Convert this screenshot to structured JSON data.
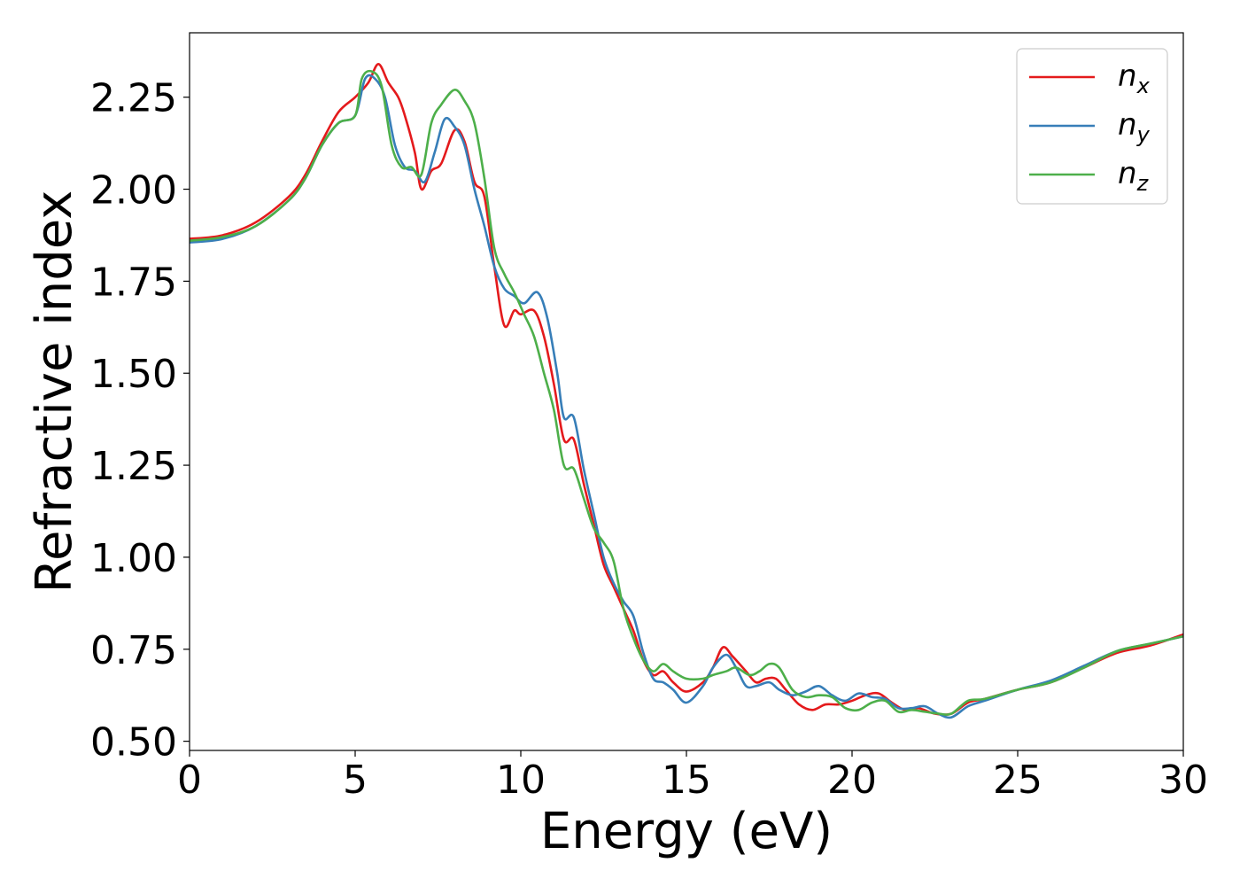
{
  "chart_data": {
    "type": "line",
    "title": "",
    "xlabel": "Energy (eV)",
    "ylabel": "Refractive index",
    "xlim": [
      0,
      30
    ],
    "ylim": [
      0.475,
      2.425
    ],
    "xticks": [
      0,
      5,
      10,
      15,
      20,
      25,
      30
    ],
    "xtick_labels": [
      "0",
      "5",
      "10",
      "15",
      "20",
      "25",
      "30"
    ],
    "yticks": [
      0.5,
      0.75,
      1.0,
      1.25,
      1.5,
      1.75,
      2.0,
      2.25
    ],
    "ytick_labels": [
      "0.50",
      "0.75",
      "1.00",
      "1.25",
      "1.50",
      "1.75",
      "2.00",
      "2.25"
    ],
    "grid": false,
    "legend_position": "top-right",
    "series": [
      {
        "name": "n",
        "subscript": "x",
        "color": "#e41a1c",
        "x": [
          0,
          1,
          2,
          3,
          3.5,
          4,
          4.5,
          5,
          5.4,
          5.7,
          6.0,
          6.3,
          6.5,
          6.8,
          7.0,
          7.3,
          7.6,
          8.0,
          8.3,
          8.6,
          8.9,
          9.2,
          9.5,
          9.8,
          10.0,
          10.4,
          10.7,
          11.0,
          11.3,
          11.6,
          11.9,
          12.2,
          12.5,
          12.8,
          13.1,
          13.4,
          13.7,
          14.0,
          14.3,
          14.6,
          15.0,
          15.5,
          15.8,
          16.1,
          16.4,
          16.8,
          17.1,
          17.4,
          17.7,
          18.0,
          18.4,
          18.8,
          19.2,
          19.6,
          20.0,
          20.4,
          20.8,
          21.2,
          21.6,
          22.0,
          22.5,
          23.0,
          23.5,
          24.0,
          25.0,
          26.0,
          27.0,
          28.0,
          29.0,
          30.0
        ],
        "y": [
          1.865,
          1.875,
          1.91,
          1.98,
          2.04,
          2.13,
          2.21,
          2.25,
          2.29,
          2.34,
          2.29,
          2.25,
          2.2,
          2.1,
          2.0,
          2.05,
          2.07,
          2.16,
          2.13,
          2.02,
          1.98,
          1.79,
          1.63,
          1.67,
          1.66,
          1.67,
          1.6,
          1.47,
          1.32,
          1.32,
          1.2,
          1.09,
          0.98,
          0.92,
          0.86,
          0.8,
          0.72,
          0.68,
          0.69,
          0.66,
          0.635,
          0.66,
          0.7,
          0.755,
          0.73,
          0.69,
          0.66,
          0.67,
          0.67,
          0.64,
          0.6,
          0.585,
          0.6,
          0.6,
          0.61,
          0.625,
          0.63,
          0.605,
          0.585,
          0.59,
          0.575,
          0.575,
          0.605,
          0.615,
          0.64,
          0.66,
          0.7,
          0.74,
          0.76,
          0.79
        ]
      },
      {
        "name": "n",
        "subscript": "y",
        "color": "#377eb8",
        "x": [
          0,
          1,
          2,
          3,
          3.5,
          4,
          4.5,
          5,
          5.3,
          5.6,
          5.9,
          6.2,
          6.5,
          6.8,
          7.1,
          7.4,
          7.7,
          8.0,
          8.3,
          8.6,
          8.9,
          9.2,
          9.5,
          9.8,
          10.1,
          10.5,
          10.8,
          11.1,
          11.3,
          11.6,
          11.9,
          12.2,
          12.5,
          12.8,
          13.1,
          13.4,
          13.7,
          14.0,
          14.3,
          14.6,
          15.0,
          15.5,
          15.8,
          16.2,
          16.5,
          16.8,
          17.1,
          17.5,
          17.8,
          18.2,
          18.6,
          19.0,
          19.4,
          19.8,
          20.2,
          20.6,
          21.0,
          21.4,
          21.8,
          22.2,
          22.6,
          23.0,
          23.5,
          24.0,
          25.0,
          26.0,
          27.0,
          28.0,
          29.0,
          30.0
        ],
        "y": [
          1.855,
          1.865,
          1.9,
          1.97,
          2.03,
          2.12,
          2.18,
          2.2,
          2.3,
          2.3,
          2.25,
          2.12,
          2.06,
          2.05,
          2.02,
          2.1,
          2.19,
          2.17,
          2.12,
          2.0,
          1.9,
          1.79,
          1.73,
          1.71,
          1.69,
          1.72,
          1.65,
          1.5,
          1.38,
          1.38,
          1.24,
          1.12,
          1.0,
          0.93,
          0.88,
          0.84,
          0.74,
          0.67,
          0.66,
          0.64,
          0.605,
          0.65,
          0.7,
          0.735,
          0.7,
          0.65,
          0.65,
          0.66,
          0.64,
          0.625,
          0.635,
          0.65,
          0.625,
          0.61,
          0.63,
          0.62,
          0.615,
          0.59,
          0.59,
          0.595,
          0.575,
          0.565,
          0.595,
          0.61,
          0.64,
          0.665,
          0.705,
          0.745,
          0.765,
          0.785
        ]
      },
      {
        "name": "n",
        "subscript": "z",
        "color": "#4daf4a",
        "x": [
          0,
          1,
          2,
          3,
          3.5,
          4,
          4.5,
          5,
          5.2,
          5.5,
          5.8,
          6.1,
          6.4,
          6.7,
          7.0,
          7.3,
          7.6,
          8.0,
          8.3,
          8.6,
          8.9,
          9.2,
          9.5,
          9.8,
          10.1,
          10.4,
          10.7,
          11.0,
          11.3,
          11.6,
          11.9,
          12.2,
          12.5,
          12.8,
          13.1,
          13.4,
          13.7,
          14.0,
          14.3,
          14.6,
          15.0,
          15.5,
          15.8,
          16.2,
          16.5,
          16.9,
          17.2,
          17.5,
          17.8,
          18.2,
          18.6,
          19.0,
          19.4,
          19.8,
          20.2,
          20.6,
          21.0,
          21.4,
          21.8,
          22.2,
          22.6,
          23.0,
          23.5,
          24.0,
          25.0,
          26.0,
          27.0,
          28.0,
          29.0,
          30.0
        ],
        "y": [
          1.86,
          1.87,
          1.9,
          1.97,
          2.03,
          2.12,
          2.18,
          2.2,
          2.3,
          2.32,
          2.28,
          2.12,
          2.06,
          2.06,
          2.04,
          2.18,
          2.23,
          2.27,
          2.24,
          2.18,
          2.03,
          1.84,
          1.77,
          1.72,
          1.66,
          1.6,
          1.5,
          1.4,
          1.25,
          1.24,
          1.16,
          1.08,
          1.04,
          0.99,
          0.86,
          0.78,
          0.72,
          0.69,
          0.71,
          0.69,
          0.67,
          0.67,
          0.68,
          0.69,
          0.7,
          0.68,
          0.69,
          0.71,
          0.7,
          0.64,
          0.62,
          0.625,
          0.62,
          0.59,
          0.585,
          0.605,
          0.61,
          0.58,
          0.585,
          0.58,
          0.575,
          0.575,
          0.61,
          0.615,
          0.64,
          0.66,
          0.7,
          0.745,
          0.765,
          0.785
        ]
      }
    ]
  }
}
